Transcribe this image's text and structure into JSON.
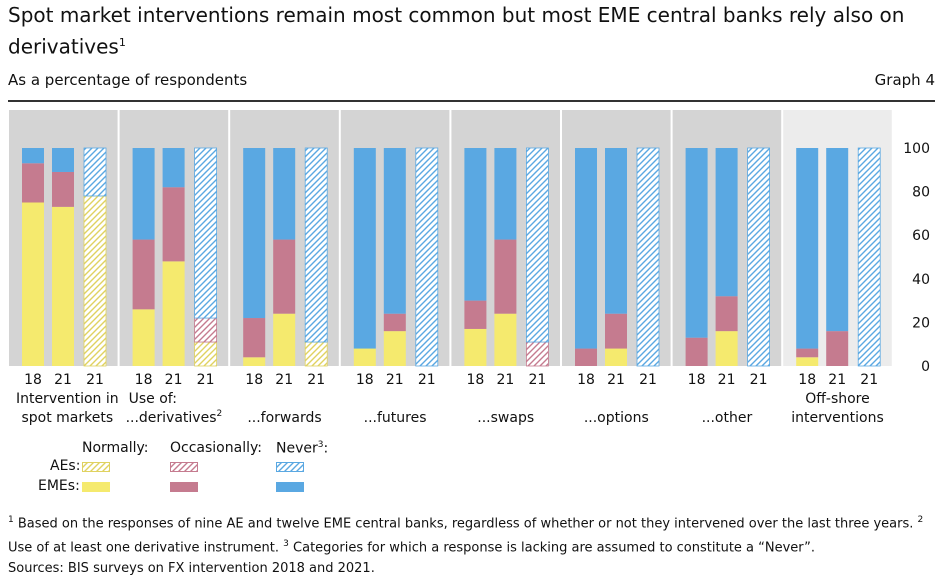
{
  "title": "Spot market interventions remain most common but most EME central banks rely also on derivatives",
  "title_note": "1",
  "subtitle": "As a percentage of respondents",
  "graph_label": "Graph 4",
  "colors": {
    "normal": "#f5ea6e",
    "occasional": "#c57b8f",
    "never": "#5aa8e2",
    "panel_dark": "#d4d4d4",
    "panel_light": "#ececec",
    "hatch_normal": "#e0d260",
    "hatch_occasional": "#c57b8f",
    "hatch_never": "#5aa8e2"
  },
  "chart_data": {
    "type": "bar",
    "stacked": true,
    "ylim": [
      0,
      100
    ],
    "yticks": [
      "100",
      "80",
      "60",
      "40",
      "20",
      "0"
    ],
    "bar_labels": [
      "18",
      "21",
      "21"
    ],
    "bar_groups": [
      "EMEs",
      "EMEs",
      "AEs"
    ],
    "series_order": [
      "Normally",
      "Occasionally",
      "Never"
    ],
    "groups": [
      {
        "label_top": "Intervention in",
        "label_bottom": "spot markets",
        "note": "",
        "shade": "dark",
        "bars": [
          {
            "year": "18",
            "group": "EMEs",
            "values": [
              75,
              18,
              7
            ]
          },
          {
            "year": "21",
            "group": "EMEs",
            "values": [
              73,
              16,
              11
            ]
          },
          {
            "year": "21",
            "group": "AEs",
            "values": [
              78,
              0,
              22
            ]
          }
        ]
      },
      {
        "label_top": "Use of:",
        "label_bottom": "...derivatives",
        "note": "2",
        "shade": "dark",
        "bars": [
          {
            "year": "18",
            "group": "EMEs",
            "values": [
              26,
              32,
              42
            ]
          },
          {
            "year": "21",
            "group": "EMEs",
            "values": [
              48,
              34,
              18
            ]
          },
          {
            "year": "21",
            "group": "AEs",
            "values": [
              11,
              11,
              78
            ]
          }
        ]
      },
      {
        "label_top": "",
        "label_bottom": "...forwards",
        "note": "",
        "shade": "dark",
        "bars": [
          {
            "year": "18",
            "group": "EMEs",
            "values": [
              4,
              18,
              78
            ]
          },
          {
            "year": "21",
            "group": "EMEs",
            "values": [
              24,
              34,
              42
            ]
          },
          {
            "year": "21",
            "group": "AEs",
            "values": [
              11,
              0,
              89
            ]
          }
        ]
      },
      {
        "label_top": "",
        "label_bottom": "...futures",
        "note": "",
        "shade": "dark",
        "bars": [
          {
            "year": "18",
            "group": "EMEs",
            "values": [
              8,
              0,
              92
            ]
          },
          {
            "year": "21",
            "group": "EMEs",
            "values": [
              16,
              8,
              76
            ]
          },
          {
            "year": "21",
            "group": "AEs",
            "values": [
              0,
              0,
              100
            ]
          }
        ]
      },
      {
        "label_top": "",
        "label_bottom": "...swaps",
        "note": "",
        "shade": "dark",
        "bars": [
          {
            "year": "18",
            "group": "EMEs",
            "values": [
              17,
              13,
              70
            ]
          },
          {
            "year": "21",
            "group": "EMEs",
            "values": [
              24,
              34,
              42
            ]
          },
          {
            "year": "21",
            "group": "AEs",
            "values": [
              0,
              11,
              89
            ]
          }
        ]
      },
      {
        "label_top": "",
        "label_bottom": "...options",
        "note": "",
        "shade": "dark",
        "bars": [
          {
            "year": "18",
            "group": "EMEs",
            "values": [
              0,
              8,
              92
            ]
          },
          {
            "year": "21",
            "group": "EMEs",
            "values": [
              8,
              16,
              76
            ]
          },
          {
            "year": "21",
            "group": "AEs",
            "values": [
              0,
              0,
              100
            ]
          }
        ]
      },
      {
        "label_top": "",
        "label_bottom": "...other",
        "note": "",
        "shade": "dark",
        "bars": [
          {
            "year": "18",
            "group": "EMEs",
            "values": [
              0,
              13,
              87
            ]
          },
          {
            "year": "21",
            "group": "EMEs",
            "values": [
              16,
              16,
              68
            ]
          },
          {
            "year": "21",
            "group": "AEs",
            "values": [
              0,
              0,
              100
            ]
          }
        ]
      },
      {
        "label_top": "Off-shore",
        "label_bottom": "interventions",
        "note": "",
        "shade": "light",
        "bars": [
          {
            "year": "18",
            "group": "EMEs",
            "values": [
              4,
              4,
              92
            ]
          },
          {
            "year": "21",
            "group": "EMEs",
            "values": [
              0,
              16,
              84
            ]
          },
          {
            "year": "21",
            "group": "AEs",
            "values": [
              0,
              0,
              100
            ]
          }
        ]
      }
    ]
  },
  "legend": {
    "normally": "Normally:",
    "occasionally": "Occasionally:",
    "never": "Never",
    "never_note": "3",
    "never_colon": ":",
    "aes": "AEs:",
    "emes": "EMEs:"
  },
  "footnotes": {
    "n1": "1",
    "t1": " Based on the responses of nine AE and twelve EME central banks, regardless of whether or not they intervened over the last three years.  ",
    "n2": "2",
    "t2": " Use of at least one derivative instrument.  ",
    "n3": "3",
    "t3": " Categories for which a response is lacking are assumed to constitute a “Never”."
  },
  "sources": "Sources: BIS surveys on FX intervention 2018 and 2021."
}
